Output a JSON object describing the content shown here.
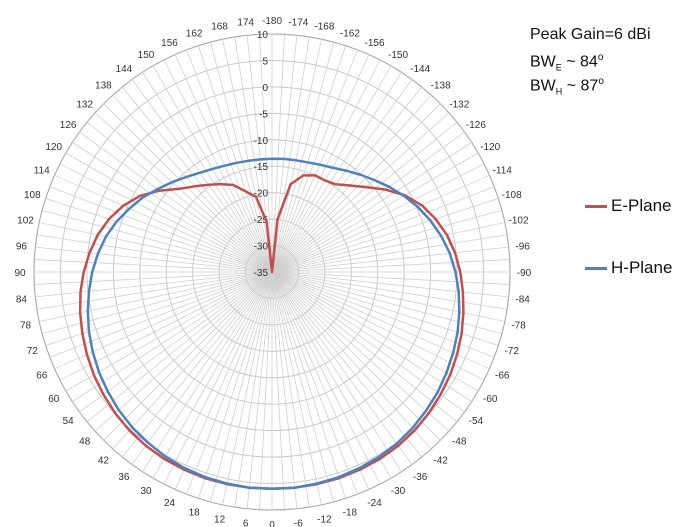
{
  "chart_data": {
    "type": "polar-line",
    "title": "",
    "radial_axis": {
      "min": -35,
      "max": 10,
      "step": 5,
      "ticks": [
        10,
        5,
        0,
        -5,
        -10,
        -15,
        -20,
        -25,
        -30,
        -35
      ]
    },
    "angular_axis": {
      "step": 6,
      "top_label": -180,
      "bottom_label": 0,
      "direction": "left side positive, right side negative"
    },
    "legend_position": "right",
    "grid": true,
    "series": [
      {
        "name": "E-Plane",
        "color": "#c0504d",
        "points": [
          [
            0,
            6
          ],
          [
            6,
            6
          ],
          [
            12,
            6
          ],
          [
            18,
            6
          ],
          [
            24,
            5.9
          ],
          [
            30,
            5.8
          ],
          [
            36,
            5.6
          ],
          [
            42,
            5.3
          ],
          [
            48,
            4.9
          ],
          [
            54,
            4.4
          ],
          [
            60,
            3.9
          ],
          [
            66,
            3.3
          ],
          [
            72,
            2.7
          ],
          [
            78,
            2.1
          ],
          [
            84,
            1.4
          ],
          [
            90,
            0.6
          ],
          [
            96,
            -0.3
          ],
          [
            102,
            -1.3
          ],
          [
            108,
            -2.6
          ],
          [
            114,
            -4.2
          ],
          [
            120,
            -6.2
          ],
          [
            126,
            -8.8
          ],
          [
            132,
            -11.5
          ],
          [
            138,
            -13.2
          ],
          [
            144,
            -14.6
          ],
          [
            150,
            -15.8
          ],
          [
            156,
            -17
          ],
          [
            162,
            -19
          ],
          [
            168,
            -20.5
          ],
          [
            174,
            -25.5
          ],
          [
            180,
            -35
          ],
          [
            -174,
            -25
          ],
          [
            -168,
            -18
          ],
          [
            -162,
            -15.8
          ],
          [
            -156,
            -15
          ],
          [
            -150,
            -15
          ],
          [
            -144,
            -14.5
          ],
          [
            -138,
            -13
          ],
          [
            -132,
            -11
          ],
          [
            -126,
            -8.5
          ],
          [
            -120,
            -6
          ],
          [
            -114,
            -4
          ],
          [
            -108,
            -2.5
          ],
          [
            -102,
            -1.2
          ],
          [
            -96,
            -0.2
          ],
          [
            -90,
            0.6
          ],
          [
            -84,
            1.3
          ],
          [
            -78,
            2
          ],
          [
            -72,
            2.7
          ],
          [
            -66,
            3.3
          ],
          [
            -60,
            3.9
          ],
          [
            -54,
            4.4
          ],
          [
            -48,
            4.9
          ],
          [
            -42,
            5.3
          ],
          [
            -36,
            5.6
          ],
          [
            -30,
            5.8
          ],
          [
            -24,
            5.9
          ],
          [
            -18,
            6
          ],
          [
            -12,
            6
          ],
          [
            -6,
            6
          ],
          [
            0,
            6
          ]
        ]
      },
      {
        "name": "H-Plane",
        "color": "#4f81bd",
        "points": [
          [
            0,
            6
          ],
          [
            6,
            6
          ],
          [
            12,
            5.9
          ],
          [
            18,
            5.8
          ],
          [
            24,
            5.6
          ],
          [
            30,
            5.3
          ],
          [
            36,
            4.9
          ],
          [
            42,
            4.5
          ],
          [
            48,
            4
          ],
          [
            54,
            3.4
          ],
          [
            60,
            2.8
          ],
          [
            66,
            2.1
          ],
          [
            72,
            1.4
          ],
          [
            78,
            0.6
          ],
          [
            84,
            -0.2
          ],
          [
            90,
            -1
          ],
          [
            96,
            -1.9
          ],
          [
            102,
            -2.9
          ],
          [
            108,
            -4.1
          ],
          [
            114,
            -5.5
          ],
          [
            120,
            -6.8
          ],
          [
            126,
            -8.3
          ],
          [
            132,
            -9.6
          ],
          [
            138,
            -10.8
          ],
          [
            144,
            -11.8
          ],
          [
            150,
            -12.5
          ],
          [
            156,
            -13
          ],
          [
            162,
            -13.3
          ],
          [
            168,
            -13.5
          ],
          [
            174,
            -13.6
          ],
          [
            180,
            -13.6
          ],
          [
            -174,
            -13.5
          ],
          [
            -168,
            -13.4
          ],
          [
            -162,
            -13.2
          ],
          [
            -156,
            -12.8
          ],
          [
            -150,
            -12.2
          ],
          [
            -144,
            -11.3
          ],
          [
            -138,
            -10.2
          ],
          [
            -132,
            -9
          ],
          [
            -126,
            -7.6
          ],
          [
            -120,
            -6.2
          ],
          [
            -114,
            -4.8
          ],
          [
            -108,
            -3.5
          ],
          [
            -102,
            -2.3
          ],
          [
            -96,
            -1.2
          ],
          [
            -90,
            -0.3
          ],
          [
            -84,
            0.5
          ],
          [
            -78,
            1.2
          ],
          [
            -72,
            1.9
          ],
          [
            -66,
            2.5
          ],
          [
            -60,
            3.1
          ],
          [
            -54,
            3.7
          ],
          [
            -48,
            4.2
          ],
          [
            -42,
            4.7
          ],
          [
            -36,
            5.1
          ],
          [
            -30,
            5.4
          ],
          [
            -24,
            5.6
          ],
          [
            -18,
            5.8
          ],
          [
            -12,
            5.9
          ],
          [
            -6,
            6
          ],
          [
            0,
            6
          ]
        ]
      }
    ]
  },
  "annotations": {
    "peak_gain": "Peak Gain=6  dBi",
    "bw_e_main": "BW",
    "bw_e_sub": "E",
    "bw_e_value": " ~ 84",
    "bw_e_unit": "o",
    "bw_h_main": "BW",
    "bw_h_sub": "H",
    "bw_h_value": " ~ 87",
    "bw_h_unit": "o"
  },
  "legend": {
    "e_plane_label": "E-Plane",
    "h_plane_label": "H-Plane"
  }
}
